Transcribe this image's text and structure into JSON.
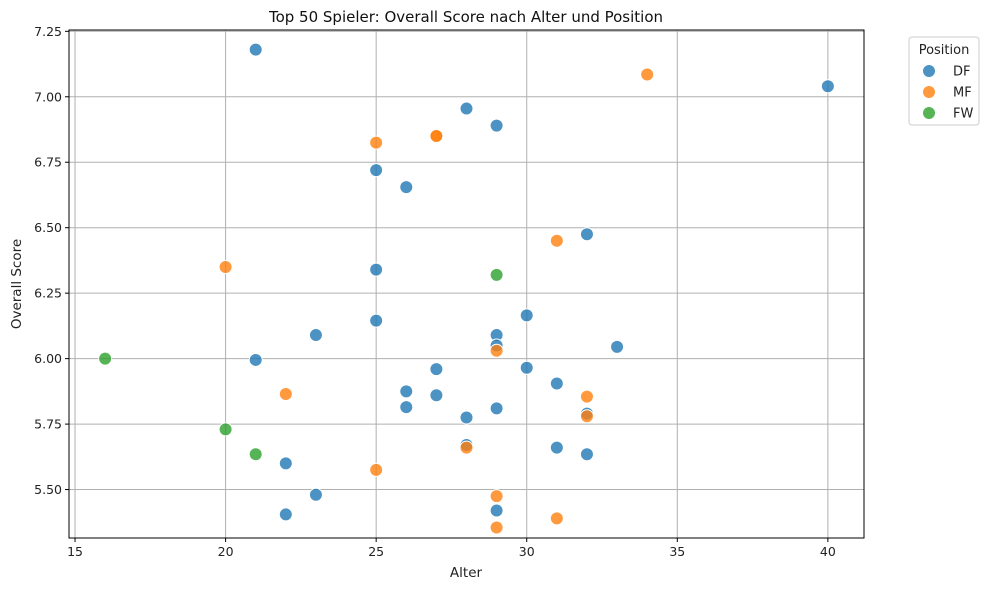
{
  "chart_data": {
    "type": "scatter",
    "title": "Top 50 Spieler: Overall Score nach Alter und Position",
    "xlabel": "Alter",
    "ylabel": "Overall Score",
    "xlim": [
      14.8,
      41.2
    ],
    "ylim": [
      5.315,
      7.255
    ],
    "xticks": [
      15,
      20,
      25,
      30,
      35,
      40
    ],
    "yticks": [
      5.5,
      5.75,
      6.0,
      6.25,
      6.5,
      6.75,
      7.0,
      7.25
    ],
    "xtick_labels": [
      "15",
      "20",
      "25",
      "30",
      "35",
      "40"
    ],
    "ytick_labels": [
      "5.50",
      "5.75",
      "6.00",
      "6.25",
      "6.50",
      "6.75",
      "7.00",
      "7.25"
    ],
    "grid": true,
    "legend": {
      "title": "Position",
      "placement": "outside-top-right"
    },
    "series": [
      {
        "name": "DF",
        "color": "#1f77b4",
        "points": [
          [
            21,
            7.18
          ],
          [
            40,
            7.04
          ],
          [
            28,
            6.955
          ],
          [
            29,
            6.89
          ],
          [
            25,
            6.72
          ],
          [
            26,
            6.655
          ],
          [
            32,
            6.475
          ],
          [
            25,
            6.34
          ],
          [
            30,
            6.165
          ],
          [
            25,
            6.145
          ],
          [
            23,
            6.09
          ],
          [
            29,
            6.09
          ],
          [
            29,
            6.05
          ],
          [
            33,
            6.045
          ],
          [
            21,
            5.995
          ],
          [
            27,
            5.96
          ],
          [
            30,
            5.965
          ],
          [
            31,
            5.905
          ],
          [
            26,
            5.875
          ],
          [
            27,
            5.86
          ],
          [
            26,
            5.815
          ],
          [
            29,
            5.81
          ],
          [
            32,
            5.79
          ],
          [
            28,
            5.775
          ],
          [
            28,
            5.67
          ],
          [
            31,
            5.66
          ],
          [
            32,
            5.635
          ],
          [
            22,
            5.6
          ],
          [
            23,
            5.48
          ],
          [
            29,
            5.42
          ],
          [
            22,
            5.405
          ]
        ]
      },
      {
        "name": "MF",
        "color": "#ff7f0e",
        "points": [
          [
            34,
            7.085
          ],
          [
            27,
            6.85
          ],
          [
            27,
            6.85
          ],
          [
            25,
            6.825
          ],
          [
            31,
            6.45
          ],
          [
            20,
            6.35
          ],
          [
            29,
            6.03
          ],
          [
            22,
            5.865
          ],
          [
            32,
            5.855
          ],
          [
            32,
            5.78
          ],
          [
            28,
            5.66
          ],
          [
            25,
            5.575
          ],
          [
            29,
            5.475
          ],
          [
            31,
            5.39
          ],
          [
            29,
            5.355
          ]
        ]
      },
      {
        "name": "FW",
        "color": "#2ca02c",
        "points": [
          [
            29,
            6.32
          ],
          [
            16,
            6.0
          ],
          [
            20,
            5.73
          ],
          [
            21,
            5.635
          ]
        ]
      }
    ]
  }
}
